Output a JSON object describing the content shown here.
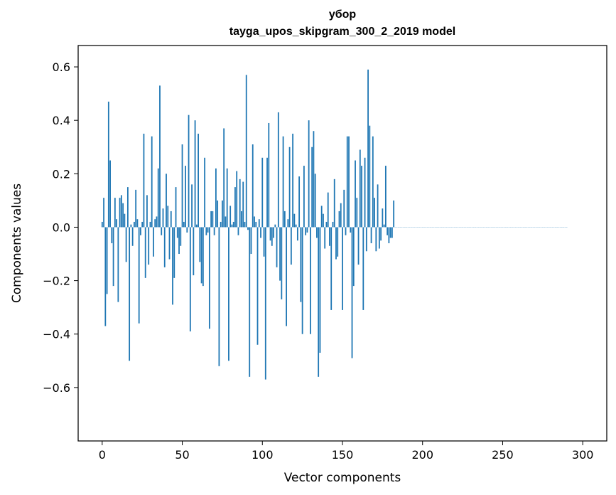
{
  "chart_data": {
    "type": "bar",
    "title": "убор",
    "subtitle": "tayga_upos_skipgram_300_2_2019 model",
    "xlabel": "Vector components",
    "ylabel": "Components values",
    "xlim": [
      -15,
      315
    ],
    "ylim": [
      -0.8,
      0.68
    ],
    "xticks": [
      0,
      50,
      100,
      150,
      200,
      250,
      300
    ],
    "xtick_labels": [
      "0",
      "50",
      "100",
      "150",
      "200",
      "250",
      "300"
    ],
    "yticks": [
      -0.6,
      -0.4,
      -0.2,
      0.0,
      0.2,
      0.4,
      0.6
    ],
    "ytick_labels": [
      "−0.6",
      "−0.4",
      "−0.2",
      "0.0",
      "0.2",
      "0.4",
      "0.6"
    ],
    "bar_color": "#1f77b4",
    "grid": false,
    "x_start": 0,
    "values": [
      0.02,
      0.11,
      -0.37,
      -0.25,
      0.47,
      0.25,
      -0.06,
      -0.22,
      0.11,
      0.03,
      -0.28,
      0.11,
      0.12,
      0.09,
      0.05,
      -0.13,
      0.15,
      -0.5,
      0.01,
      -0.07,
      0.02,
      0.14,
      0.03,
      -0.36,
      -0.03,
      0.02,
      0.35,
      -0.19,
      0.12,
      -0.14,
      0.02,
      0.34,
      -0.11,
      0.03,
      0.04,
      0.22,
      0.53,
      -0.03,
      0.07,
      -0.15,
      0.2,
      0.08,
      -0.12,
      0.06,
      -0.29,
      -0.19,
      0.15,
      -0.04,
      -0.1,
      -0.07,
      0.31,
      0.02,
      0.23,
      -0.02,
      0.42,
      -0.39,
      0.16,
      -0.18,
      0.4,
      0.01,
      0.35,
      -0.13,
      -0.21,
      -0.22,
      0.26,
      -0.03,
      -0.02,
      -0.38,
      0.06,
      0.06,
      -0.03,
      0.22,
      0.1,
      -0.52,
      0.02,
      0.1,
      0.37,
      0.04,
      0.22,
      -0.5,
      0.08,
      0.01,
      0.02,
      0.15,
      0.21,
      -0.03,
      0.18,
      0.06,
      0.17,
      0.02,
      0.57,
      -0.01,
      -0.56,
      -0.1,
      0.31,
      0.04,
      0.02,
      -0.44,
      0.03,
      -0.04,
      0.26,
      -0.11,
      -0.57,
      0.26,
      0.39,
      -0.05,
      -0.07,
      -0.04,
      0.01,
      -0.15,
      0.43,
      -0.2,
      -0.27,
      0.34,
      0.06,
      -0.37,
      0.03,
      0.3,
      -0.14,
      0.35,
      0.05,
      0.01,
      -0.05,
      0.19,
      -0.28,
      -0.4,
      0.23,
      -0.03,
      -0.02,
      0.4,
      -0.4,
      0.3,
      0.36,
      0.2,
      -0.04,
      -0.56,
      -0.47,
      0.08,
      0.05,
      -0.08,
      0.02,
      0.13,
      -0.07,
      -0.31,
      0.02,
      0.18,
      -0.12,
      -0.11,
      0.06,
      0.09,
      -0.31,
      0.14,
      -0.03,
      0.34,
      0.34,
      -0.02,
      -0.49,
      -0.22,
      0.25,
      0.11,
      -0.14,
      0.29,
      0.23,
      -0.31,
      0.26,
      -0.09,
      0.59,
      0.38,
      -0.06,
      0.34,
      0.11,
      -0.09,
      0.16,
      -0.08,
      -0.05,
      0.07,
      0.01,
      0.23,
      -0.03,
      -0.06,
      -0.04,
      -0.04,
      0.1,
      0.0,
      0.0,
      0.0,
      0.0,
      0.0,
      0.0,
      0.0,
      0.0,
      0.0,
      0.0,
      0.0,
      0.0,
      0.0,
      0.0,
      0.0,
      0.0,
      0.0,
      0.0,
      0.0,
      0.0,
      0.0,
      0.0,
      0.0,
      0.0,
      0.0,
      0.0,
      0.0,
      0.0,
      0.0,
      0.0,
      0.0,
      0.0,
      0.0,
      0.0,
      0.0,
      0.0,
      0.0,
      0.0,
      0.0,
      0.0,
      0.0,
      0.0,
      0.0,
      0.0,
      0.0,
      0.0,
      0.0,
      0.0,
      0.0,
      0.0,
      0.0,
      0.0,
      0.0,
      0.0,
      0.0,
      0.0,
      0.0,
      0.0,
      0.0,
      0.0,
      0.0,
      0.0,
      0.0,
      0.0,
      0.0,
      0.0,
      0.0,
      0.0,
      0.0,
      0.0,
      0.0,
      0.0,
      0.0,
      0.0,
      0.0,
      0.0,
      0.0,
      0.0,
      0.0,
      0.0,
      0.0,
      0.0,
      0.0,
      0.0,
      0.0,
      0.0,
      0.0,
      0.0,
      0.0,
      0.0,
      0.0,
      0.0,
      0.0,
      0.0,
      0.0,
      0.0,
      0.0,
      0.0,
      0.0,
      0.0,
      0.0,
      0.0,
      0.0,
      0.0,
      0.0,
      0.0,
      0.0,
      0.0
    ]
  }
}
